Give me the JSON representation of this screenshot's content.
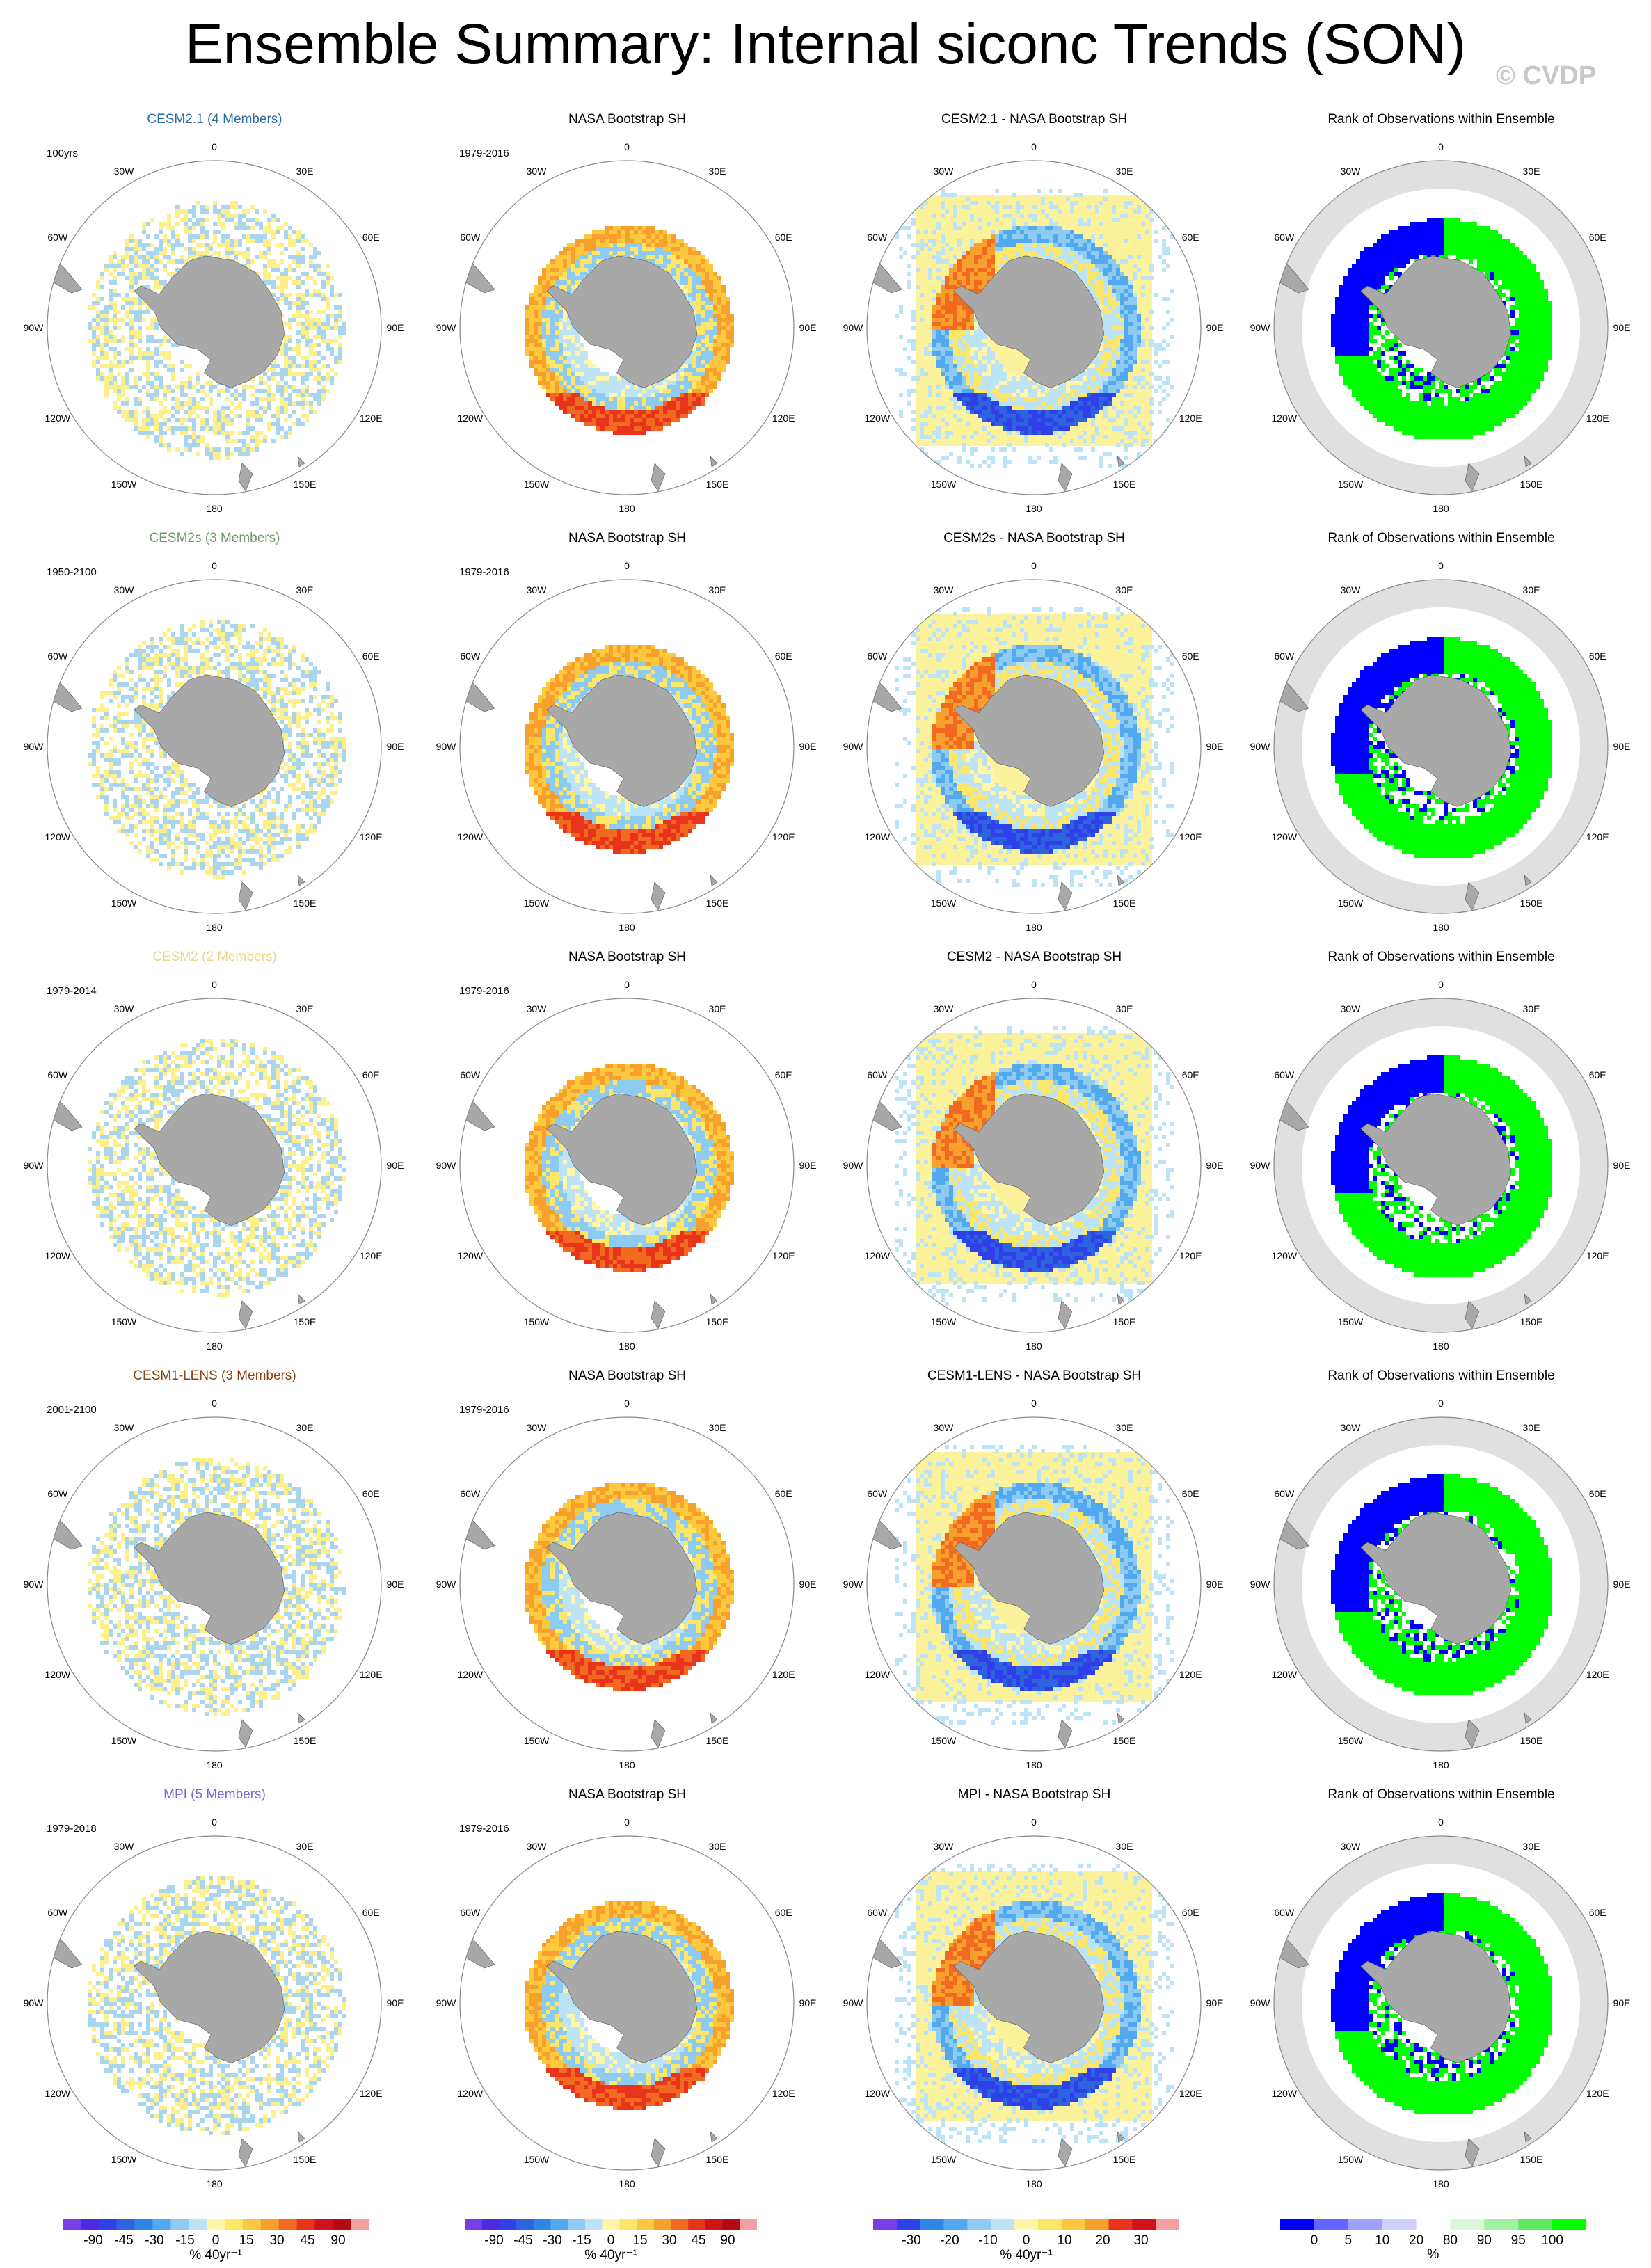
{
  "title": "Ensemble Summary: Internal siconc Trends (SON)",
  "watermark": "© CVDP",
  "colors": {
    "land": "#a8a8a8",
    "ocean_rank_bg": "#e0e0e0",
    "model_blue": "#a9d6ee",
    "model_yellow": "#fdf08a",
    "diff_fill": "#fdf29c",
    "rank_blue": "#0000ff",
    "rank_green": "#00ff00",
    "rank_white": "#ffffff"
  },
  "map_labels": {
    "lon": [
      "0",
      "30E",
      "60E",
      "90E",
      "120E",
      "150E",
      "180",
      "150W",
      "120W",
      "90W",
      "60W",
      "30W"
    ]
  },
  "rows": [
    {
      "model": {
        "title": "CESM2.1 (4 Members)",
        "title_color": "#2b6d9e",
        "period": "100yrs"
      },
      "obs": {
        "title": "NASA Bootstrap SH",
        "period": "1979-2016"
      },
      "diff": {
        "title": "CESM2.1 - NASA Bootstrap SH"
      },
      "rank": {
        "title": "Rank of Observations within Ensemble"
      }
    },
    {
      "model": {
        "title": "CESM2s (3 Members)",
        "title_color": "#6e9a6e",
        "period": "1950-2100"
      },
      "obs": {
        "title": "NASA Bootstrap SH",
        "period": "1979-2016"
      },
      "diff": {
        "title": "CESM2s - NASA Bootstrap SH"
      },
      "rank": {
        "title": "Rank of Observations within Ensemble"
      }
    },
    {
      "model": {
        "title": "CESM2 (2 Members)",
        "title_color": "#e8d58a",
        "period": "1979-2014"
      },
      "obs": {
        "title": "NASA Bootstrap SH",
        "period": "1979-2016"
      },
      "diff": {
        "title": "CESM2 - NASA Bootstrap SH"
      },
      "rank": {
        "title": "Rank of Observations within Ensemble"
      }
    },
    {
      "model": {
        "title": "CESM1-LENS (3 Members)",
        "title_color": "#8b4513",
        "period": "2001-2100"
      },
      "obs": {
        "title": "NASA Bootstrap SH",
        "period": "1979-2016"
      },
      "diff": {
        "title": "CESM1-LENS - NASA Bootstrap SH"
      },
      "rank": {
        "title": "Rank of Observations within Ensemble"
      }
    },
    {
      "model": {
        "title": "MPI (5 Members)",
        "title_color": "#7b68d8",
        "period": "1979-2018"
      },
      "obs": {
        "title": "NASA Bootstrap SH",
        "period": "1979-2016"
      },
      "diff": {
        "title": "MPI - NASA Bootstrap SH"
      },
      "rank": {
        "title": "Rank of Observations within Ensemble"
      }
    }
  ],
  "colorbars": [
    {
      "unit": "% 40yr⁻¹",
      "labels": [
        "-90",
        "-45",
        "-30",
        "-15",
        "0",
        "15",
        "30",
        "45",
        "90"
      ],
      "colors": [
        "#7b3ee6",
        "#4b2be0",
        "#3040e8",
        "#2e63e0",
        "#2f86e6",
        "#53a9ef",
        "#8ecbf3",
        "#bde3f6",
        "#fff6a8",
        "#fde668",
        "#fbc83e",
        "#f8a02e",
        "#f26a22",
        "#e8341a",
        "#d0121a",
        "#b40a14",
        "#f5a0a0"
      ]
    },
    {
      "unit": "% 40yr⁻¹",
      "labels": [
        "-90",
        "-45",
        "-30",
        "-15",
        "0",
        "15",
        "30",
        "45",
        "90"
      ],
      "colors": [
        "#7b3ee6",
        "#4b2be0",
        "#3040e8",
        "#2e63e0",
        "#2f86e6",
        "#53a9ef",
        "#8ecbf3",
        "#bde3f6",
        "#fff6a8",
        "#fde668",
        "#fbc83e",
        "#f8a02e",
        "#f26a22",
        "#e8341a",
        "#d0121a",
        "#b40a14",
        "#f5a0a0"
      ]
    },
    {
      "unit": "% 40yr⁻¹",
      "labels": [
        "-30",
        "-20",
        "-10",
        "0",
        "10",
        "20",
        "30"
      ],
      "colors": [
        "#7b3ee6",
        "#3040e8",
        "#2f86e6",
        "#53a9ef",
        "#8ecbf3",
        "#bde3f6",
        "#fff6a8",
        "#fde668",
        "#fbc83e",
        "#f8a02e",
        "#e8341a",
        "#d0121a",
        "#f5a0a0"
      ]
    },
    {
      "unit": "%",
      "labels": [
        "0",
        "5",
        "10",
        "20",
        "80",
        "90",
        "95",
        "100"
      ],
      "colors": [
        "#0000ff",
        "#6464ff",
        "#a0a0ff",
        "#d0d0ff",
        "#ffffff",
        "#d8f8d8",
        "#a0f0a0",
        "#60e860",
        "#00ff00"
      ]
    }
  ],
  "chart_data": [
    {
      "type": "heatmap",
      "title": "Ensemble Summary: Internal siconc Trends (SON)",
      "description_panels": "5 rows x 4 columns of south-polar stereographic maps: model ensemble-mean internal sea ice concentration trend, observed (NASA Bootstrap SH) trend, model minus observations difference, and rank of observations within ensemble",
      "rows": [
        "CESM2.1 (4 Members)",
        "CESM2s (3 Members)",
        "CESM2 (2 Members)",
        "CESM1-LENS (3 Members)",
        "MPI (5 Members)"
      ],
      "columns": [
        "model",
        "NASA Bootstrap SH",
        "model - NASA Bootstrap SH",
        "Rank of Observations within Ensemble"
      ],
      "colorbar_levels_trend": [
        -90,
        -45,
        -30,
        -15,
        0,
        15,
        30,
        45,
        90
      ],
      "colorbar_levels_diff": [
        -30,
        -20,
        -10,
        0,
        10,
        20,
        30
      ],
      "colorbar_levels_rank": [
        0,
        5,
        10,
        20,
        80,
        90,
        95,
        100
      ],
      "units_trend": "% 40yr⁻¹",
      "units_rank": "%"
    }
  ]
}
